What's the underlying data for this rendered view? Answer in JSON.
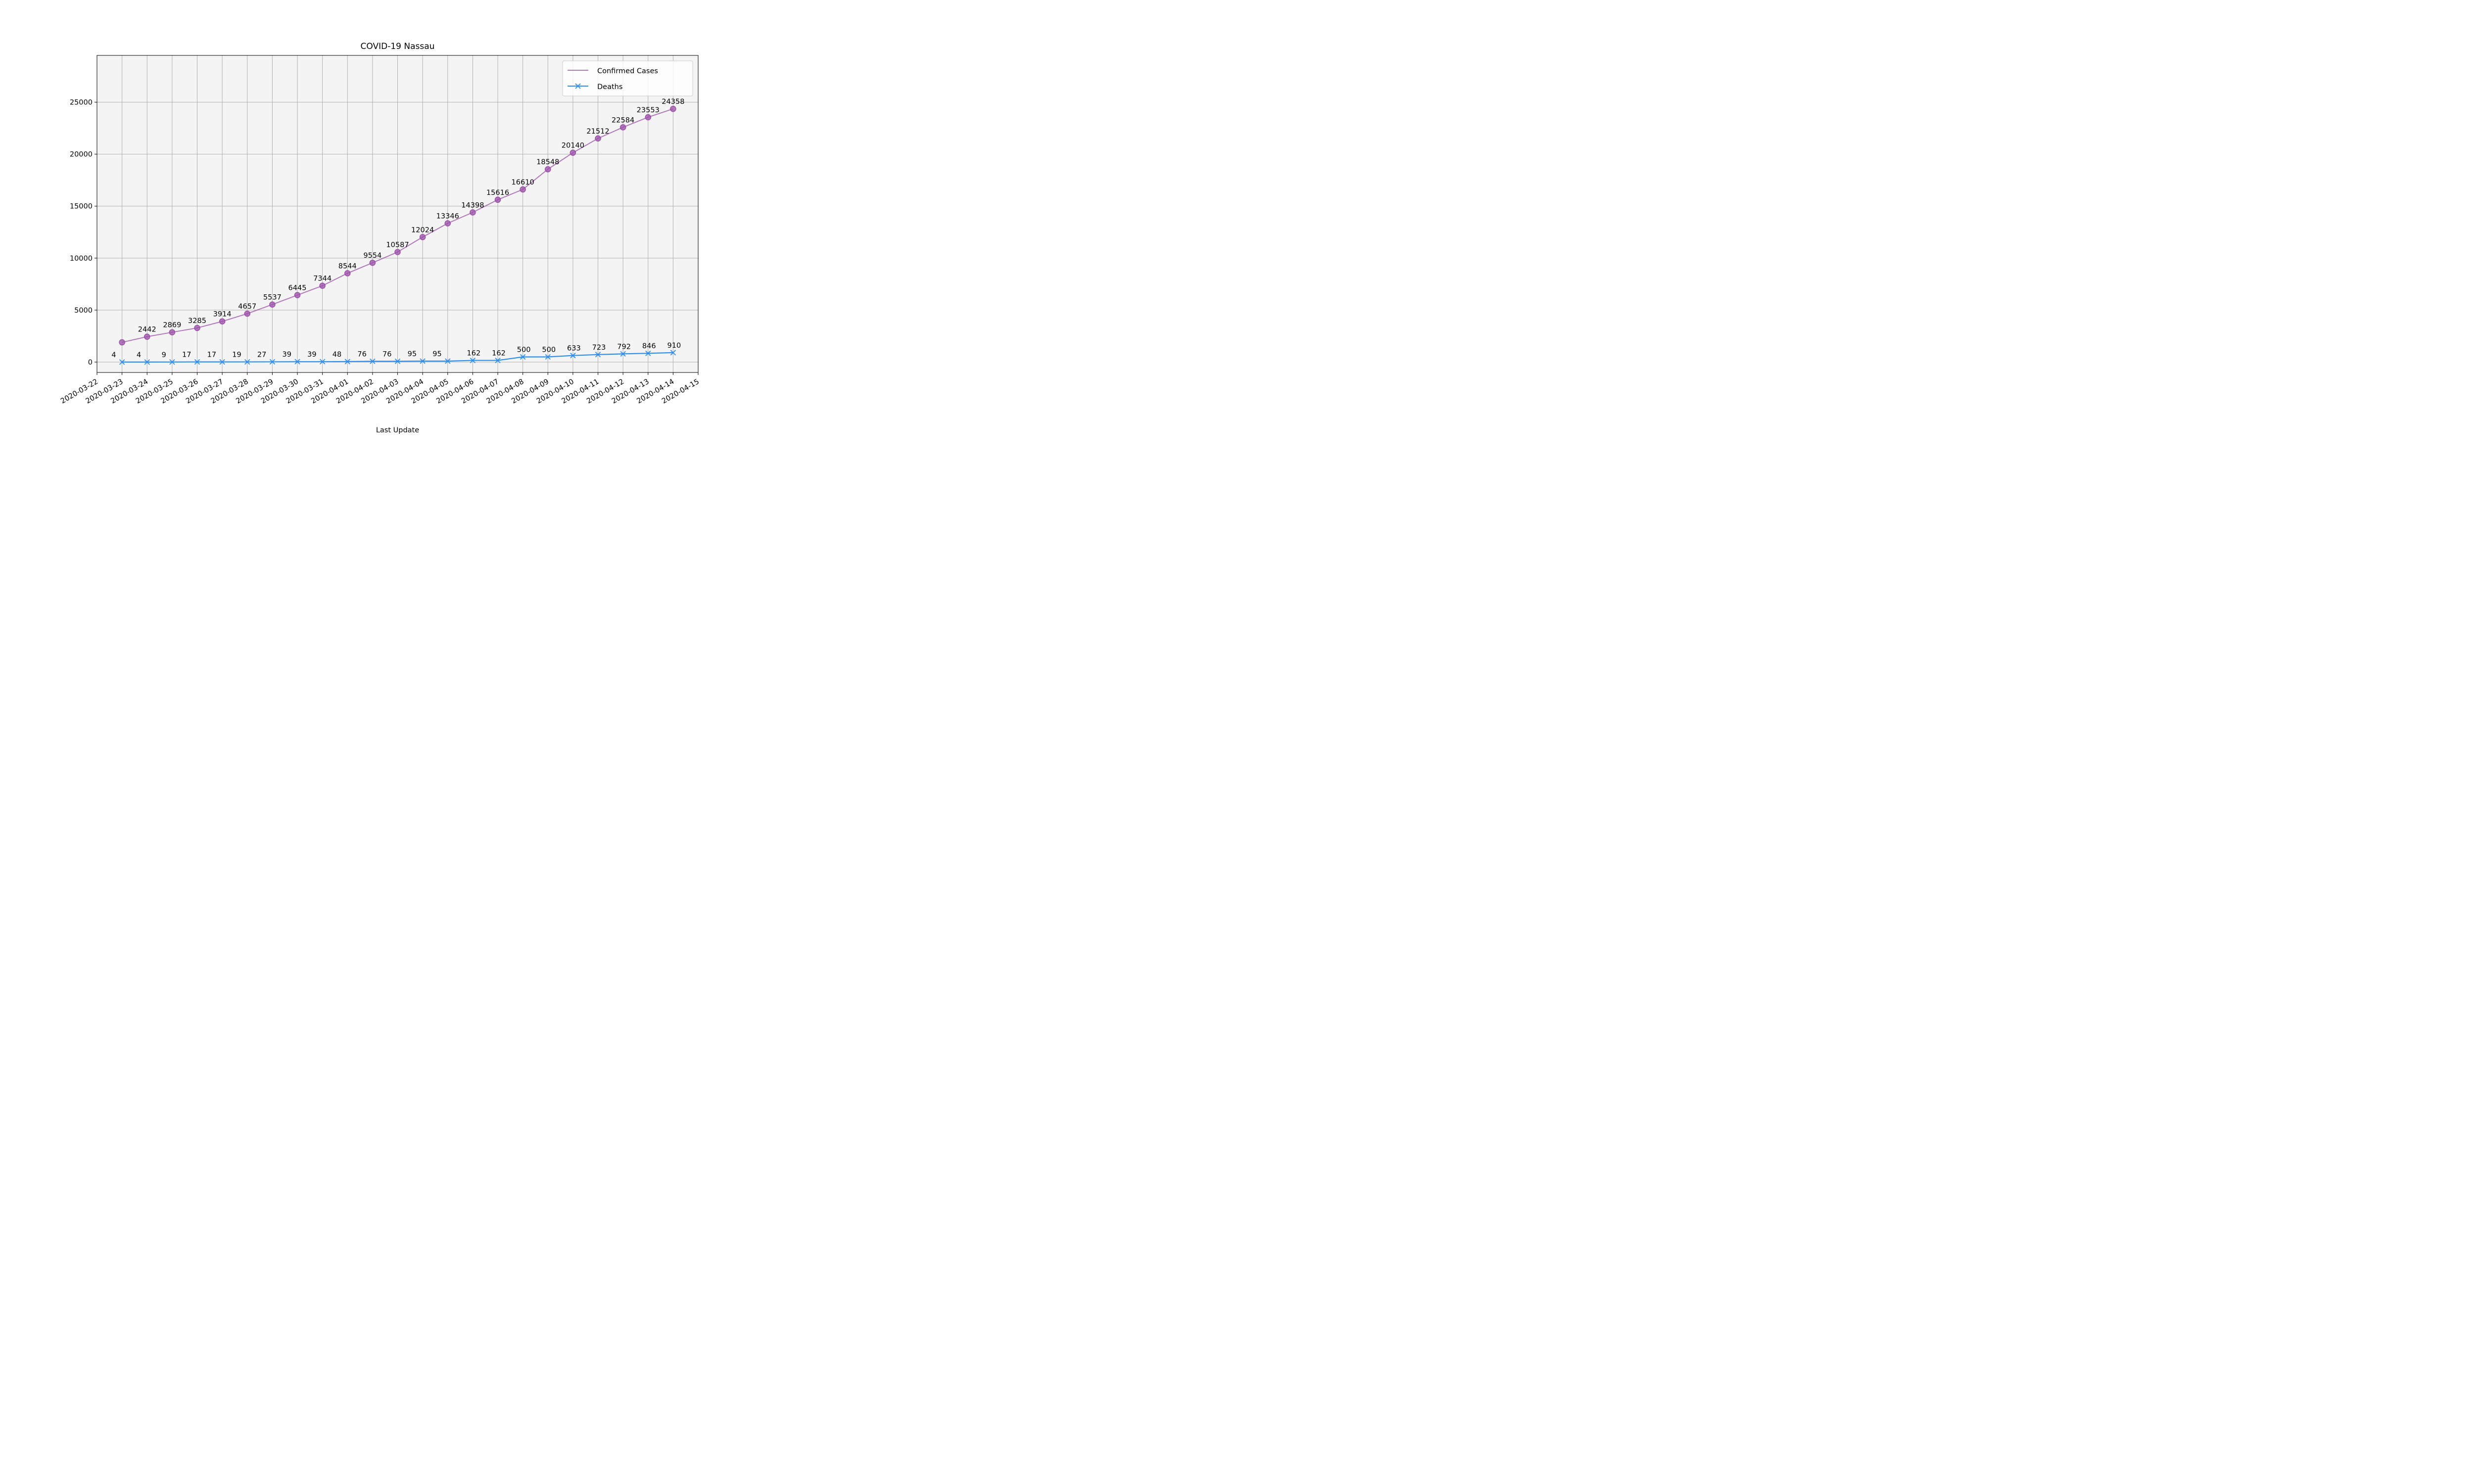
{
  "chart_data": {
    "type": "line",
    "title": "COVID-19 Nassau",
    "xlabel": "Last Update",
    "ylabel": "",
    "x": [
      "2020-03-23",
      "2020-03-24",
      "2020-03-25",
      "2020-03-26",
      "2020-03-27",
      "2020-03-28",
      "2020-03-29",
      "2020-03-30",
      "2020-03-31",
      "2020-04-01",
      "2020-04-02",
      "2020-04-03",
      "2020-04-04",
      "2020-04-05",
      "2020-04-06",
      "2020-04-07",
      "2020-04-08",
      "2020-04-09",
      "2020-04-10",
      "2020-04-11",
      "2020-04-12",
      "2020-04-13",
      "2020-04-14"
    ],
    "x_ticks": [
      "2020-03-22",
      "2020-03-23",
      "2020-03-24",
      "2020-03-25",
      "2020-03-26",
      "2020-03-27",
      "2020-03-28",
      "2020-03-29",
      "2020-03-30",
      "2020-03-31",
      "2020-04-01",
      "2020-04-02",
      "2020-04-03",
      "2020-04-04",
      "2020-04-05",
      "2020-04-06",
      "2020-04-07",
      "2020-04-08",
      "2020-04-09",
      "2020-04-10",
      "2020-04-11",
      "2020-04-12",
      "2020-04-13",
      "2020-04-14",
      "2020-04-15"
    ],
    "xlim": [
      "2020-03-22",
      "2020-04-15"
    ],
    "ylim": [
      -1000,
      29500
    ],
    "y_ticks": [
      0,
      5000,
      10000,
      15000,
      20000,
      25000
    ],
    "grid": true,
    "legend_position": "top-right",
    "series": [
      {
        "name": "Confirmed Cases",
        "color": "#9b4fa8",
        "marker": "circle",
        "values": [
          1900,
          2442,
          2869,
          3285,
          3914,
          4657,
          5537,
          6445,
          7344,
          8544,
          9554,
          10587,
          12024,
          13346,
          14398,
          15616,
          16610,
          18548,
          20140,
          21512,
          22584,
          23553,
          24358
        ],
        "labels": [
          "",
          "2442",
          "2869",
          "3285",
          "3914",
          "4657",
          "5537",
          "6445",
          "7344",
          "8544",
          "9554",
          "10587",
          "12024",
          "13346",
          "14398",
          "15616",
          "16610",
          "18548",
          "20140",
          "21512",
          "22584",
          "23553",
          "24358"
        ]
      },
      {
        "name": "Deaths",
        "color": "#2f8ff0",
        "marker": "x",
        "values": [
          4,
          4,
          9,
          17,
          17,
          19,
          27,
          39,
          39,
          48,
          76,
          76,
          95,
          95,
          162,
          162,
          500,
          500,
          633,
          723,
          792,
          846,
          910
        ],
        "labels": [
          "4",
          "4",
          "9",
          "17",
          "17",
          "19",
          "27",
          "39",
          "39",
          "48",
          "76",
          "76",
          "95",
          "95",
          "162",
          "162",
          "500",
          "500",
          "633",
          "723",
          "792",
          "846",
          "910"
        ]
      }
    ]
  }
}
